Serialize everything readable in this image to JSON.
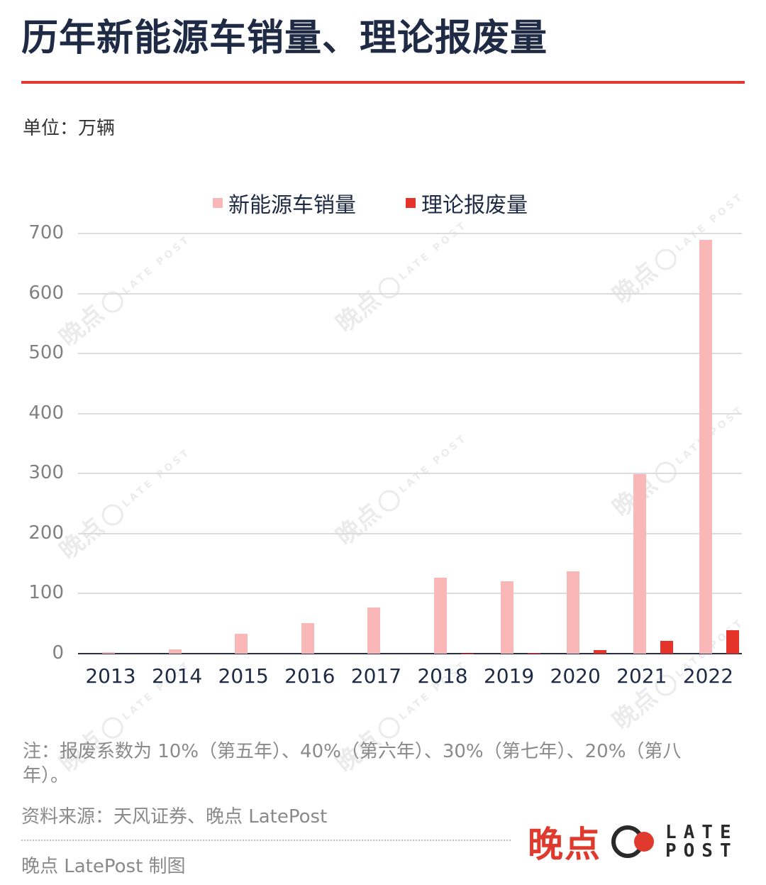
{
  "header": {
    "title": "历年新能源车销量、理论报废量",
    "unit_label": "单位：万辆"
  },
  "colors": {
    "title_text": "#1f2a44",
    "accent_rule": "#e03a2e",
    "sales_bar": "#f9b7b7",
    "scrap_bar": "#e5332a",
    "gridline": "#dcdcdc",
    "axis": "#2b2f45"
  },
  "legend": [
    {
      "label": "新能源车销量",
      "color": "#f9b7b7"
    },
    {
      "label": "理论报废量",
      "color": "#e5332a"
    }
  ],
  "chart_data": {
    "type": "bar",
    "title": "历年新能源车销量、理论报废量",
    "xlabel": "",
    "ylabel": "单位：万辆",
    "categories": [
      "2013",
      "2014",
      "2015",
      "2016",
      "2017",
      "2018",
      "2019",
      "2020",
      "2021",
      "2022"
    ],
    "series": [
      {
        "name": "新能源车销量",
        "color": "#f9b7b7",
        "values": [
          2,
          7.5,
          33,
          51,
          77,
          126,
          121,
          137,
          299,
          689
        ]
      },
      {
        "name": "理论报废量",
        "color": "#e5332a",
        "values": [
          0,
          0,
          0,
          0,
          0,
          0.3,
          1.5,
          6,
          21,
          39
        ]
      }
    ],
    "ylim": [
      0,
      700
    ],
    "yticks": [
      "0",
      "100",
      "200",
      "300",
      "400",
      "500",
      "600",
      "700"
    ],
    "grid": true,
    "legend_position": "top"
  },
  "footer": {
    "note": "注：报废系数为 10%（第五年）、40%（第六年）、30%（第七年）、20%（第八年）。",
    "source": "资料来源：天风证券、晚点 LatePost",
    "credit": "晚点 LatePost 制图",
    "logo_cn": "晚点",
    "logo_en_line1": "LATE",
    "logo_en_line2": "POST"
  },
  "watermark": {
    "cn": "晚点",
    "en": "LATE POST"
  }
}
